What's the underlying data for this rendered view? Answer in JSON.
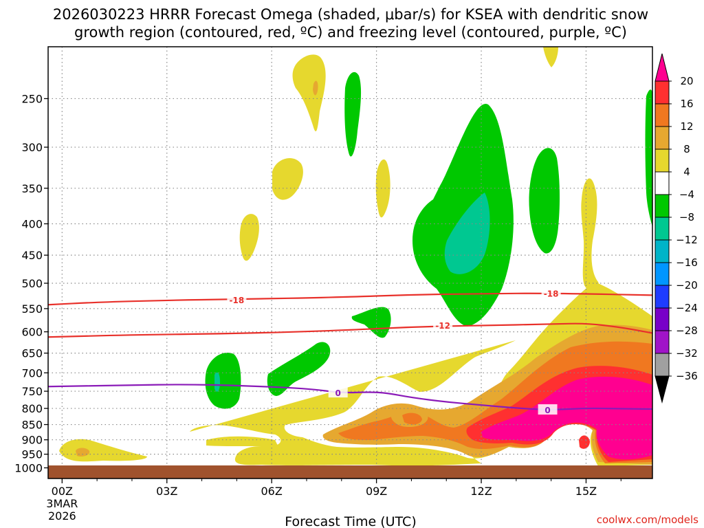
{
  "title": {
    "line1": "2026030223 HRRR Forecast Omega (shaded, μbar/s) for KSEA with dendritic snow",
    "line2": "growth region (contoured, red, ºC) and freezing level (contoured, purple, ºC)"
  },
  "credit": "coolwx.com/models",
  "chart_data": {
    "type": "contour",
    "title": "2026030223 HRRR Forecast Omega (shaded, μbar/s) for KSEA with dendritic snow growth region (contoured, red, ºC) and freezing level (contoured, purple, ºC)",
    "xlabel": "Forecast Time (UTC)",
    "ylabel": "",
    "xlim": [
      -0.4,
      16.9
    ],
    "ylim_hpa": [
      1025,
      200
    ],
    "x_ticks": [
      {
        "value": 0,
        "label": "00Z",
        "sub1": "3MAR",
        "sub2": "2026"
      },
      {
        "value": 3,
        "label": "03Z"
      },
      {
        "value": 6,
        "label": "06Z"
      },
      {
        "value": 9,
        "label": "09Z"
      },
      {
        "value": 12,
        "label": "12Z"
      },
      {
        "value": 15,
        "label": "15Z"
      }
    ],
    "y_ticks": [
      250,
      300,
      350,
      400,
      450,
      500,
      550,
      600,
      650,
      700,
      750,
      800,
      850,
      900,
      950,
      1000
    ],
    "grid": "dotted",
    "colorbar": {
      "levels": [
        20,
        16,
        12,
        8,
        4,
        -4,
        -8,
        -12,
        -16,
        -20,
        -24,
        -28,
        -32,
        -36
      ],
      "colors": [
        "#ff0090",
        "#ff3030",
        "#f07820",
        "#e6a830",
        "#e6d82e",
        "#ffffff",
        "#00c800",
        "#00c891",
        "#00b4c8",
        "#0096ff",
        "#1e3cff",
        "#7800c8",
        "#a014c8",
        "#a0a0a0",
        "#000000"
      ]
    },
    "surface_color": "#a0522d",
    "contours": [
      {
        "name": "dendritic snow growth -18 C",
        "color": "#e8302a",
        "label": "-18",
        "points": [
          [
            -0.4,
            542
          ],
          [
            1,
            537
          ],
          [
            3,
            533
          ],
          [
            5,
            531
          ],
          [
            8,
            527
          ],
          [
            10,
            522
          ],
          [
            12,
            520
          ],
          [
            14,
            519
          ],
          [
            16.9,
            523
          ]
        ],
        "label_at": [
          [
            5,
            532
          ],
          [
            14,
            519
          ]
        ]
      },
      {
        "name": "dendritic snow growth -12 C",
        "color": "#e8302a",
        "label": "-12",
        "points": [
          [
            -0.4,
            612
          ],
          [
            2,
            607
          ],
          [
            5,
            604
          ],
          [
            8,
            597
          ],
          [
            10,
            589
          ],
          [
            12,
            586
          ],
          [
            14,
            583
          ],
          [
            15,
            581
          ],
          [
            16,
            590
          ],
          [
            16.9,
            603
          ]
        ],
        "label_at": [
          [
            10.9,
            585
          ]
        ]
      },
      {
        "name": "freezing level 0 C",
        "color": "#8a1ab8",
        "label": "0",
        "points": [
          [
            -0.4,
            737
          ],
          [
            2,
            733
          ],
          [
            3.5,
            731
          ],
          [
            5,
            734
          ],
          [
            7,
            742
          ],
          [
            8,
            755
          ],
          [
            8.8,
            752
          ],
          [
            9.3,
            755
          ],
          [
            10,
            768
          ],
          [
            11,
            781
          ],
          [
            12,
            790
          ],
          [
            13,
            799
          ],
          [
            14,
            805
          ],
          [
            15,
            799
          ],
          [
            16,
            801
          ],
          [
            16.9,
            802
          ]
        ],
        "label_at": [
          [
            7.9,
            754
          ],
          [
            13.9,
            804
          ]
        ]
      }
    ],
    "shaded_regions": [
      {
        "value": "4 to 8",
        "color": "#e6d82e",
        "desc": "upper-level positive omega cells near 200-450 hPa around 05Z-07Z, 09Z, 15Z"
      },
      {
        "value": "-4 to -8",
        "color": "#00c800",
        "desc": "rising motion cells: 04Z-05Z near 700 hPa, 06Z-07Z near 700 hPa, 08Z near 250-300 hPa, 10Z-13Z near 270-550 hPa, 14Z near 300-450 hPa"
      },
      {
        "value": "-8 to -12",
        "color": "#00c891",
        "desc": "core near 11Z 400-450 hPa"
      },
      {
        "value": "8 to 20+",
        "color": "#ff0090",
        "desc": "strong sinking motion 12Z-17Z near 650-1000 hPa, peak >20 near 14Z-16Z 800-950 hPa"
      }
    ]
  }
}
